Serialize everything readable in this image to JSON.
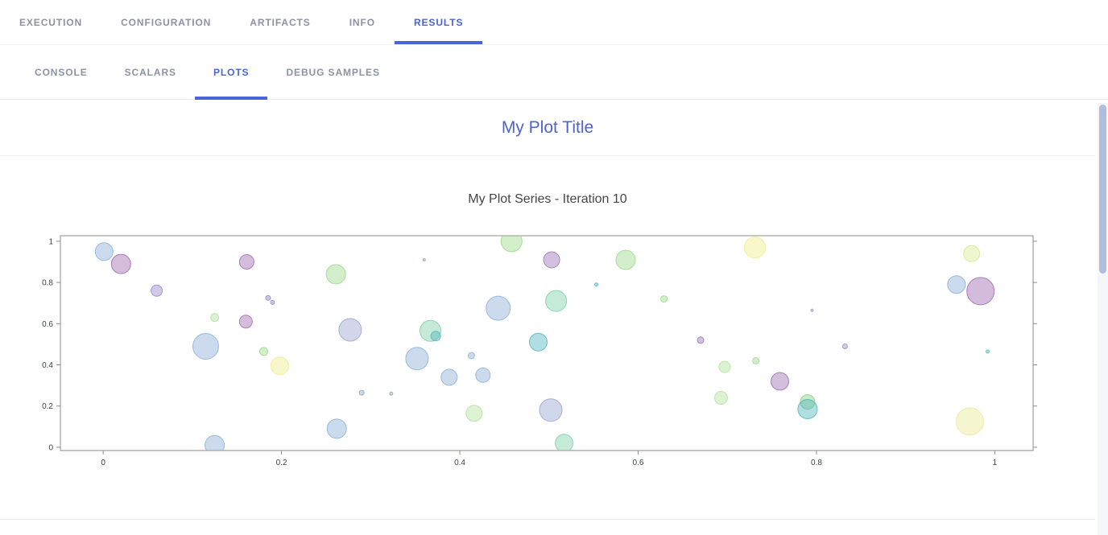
{
  "nav": {
    "tabs": [
      {
        "label": "EXECUTION",
        "active": false
      },
      {
        "label": "CONFIGURATION",
        "active": false
      },
      {
        "label": "ARTIFACTS",
        "active": false
      },
      {
        "label": "INFO",
        "active": false
      },
      {
        "label": "RESULTS",
        "active": true
      }
    ]
  },
  "subnav": {
    "tabs": [
      {
        "label": "CONSOLE",
        "active": false
      },
      {
        "label": "SCALARS",
        "active": false
      },
      {
        "label": "PLOTS",
        "active": true
      },
      {
        "label": "DEBUG SAMPLES",
        "active": false
      }
    ]
  },
  "plot_header": {
    "title": "My Plot Title"
  },
  "theme": {
    "accent": "#4a63d8",
    "plot_title_color": "#5064c4",
    "nav_inactive_color": "#8b92a3",
    "scrollbar_thumb_color": "#b1bddc",
    "axis_frame_color": "#8c8c8c",
    "tick_label_color": "#3b3f48"
  },
  "chart_data": {
    "type": "scatter",
    "title": "My Plot Series - Iteration 10",
    "xlabel": "",
    "ylabel": "",
    "xlim": [
      -0.048,
      1.043
    ],
    "ylim": [
      -0.016,
      1.027
    ],
    "x_ticks": [
      0,
      0.2,
      0.4,
      0.6,
      0.8,
      1
    ],
    "y_ticks": [
      0,
      0.2,
      0.4,
      0.6,
      0.8,
      1
    ],
    "grid": false,
    "legend": false,
    "marker_fill_opacity": 0.45,
    "marker_stroke_opacity": 0.85,
    "points": [
      {
        "x": 0.001,
        "y": 0.95,
        "r": 11,
        "color": "#8cb0d6"
      },
      {
        "x": 0.02,
        "y": 0.89,
        "r": 12,
        "color": "#9f6bb0"
      },
      {
        "x": 0.06,
        "y": 0.76,
        "r": 7,
        "color": "#9888cc"
      },
      {
        "x": 0.115,
        "y": 0.49,
        "r": 16,
        "color": "#8cb0d6"
      },
      {
        "x": 0.125,
        "y": 0.63,
        "r": 5,
        "color": "#b2e39e"
      },
      {
        "x": 0.125,
        "y": 0.01,
        "r": 12,
        "color": "#8cb0d6"
      },
      {
        "x": 0.161,
        "y": 0.9,
        "r": 9,
        "color": "#9f6bb0"
      },
      {
        "x": 0.16,
        "y": 0.61,
        "r": 8,
        "color": "#a06fb2"
      },
      {
        "x": 0.18,
        "y": 0.465,
        "r": 5,
        "color": "#9cd989"
      },
      {
        "x": 0.185,
        "y": 0.725,
        "r": 3,
        "color": "#8f86c4"
      },
      {
        "x": 0.19,
        "y": 0.703,
        "r": 2.5,
        "color": "#8f86c4"
      },
      {
        "x": 0.198,
        "y": 0.395,
        "r": 11,
        "color": "#f0ed8c"
      },
      {
        "x": 0.261,
        "y": 0.84,
        "r": 12,
        "color": "#9cd989"
      },
      {
        "x": 0.262,
        "y": 0.09,
        "r": 12,
        "color": "#8cb0d6"
      },
      {
        "x": 0.277,
        "y": 0.57,
        "r": 14,
        "color": "#9da3cf"
      },
      {
        "x": 0.29,
        "y": 0.265,
        "r": 3,
        "color": "#9aa2b2"
      },
      {
        "x": 0.323,
        "y": 0.26,
        "r": 2,
        "color": "#9aa2b2"
      },
      {
        "x": 0.352,
        "y": 0.43,
        "r": 14,
        "color": "#8cb0d6"
      },
      {
        "x": 0.36,
        "y": 0.91,
        "r": 1.5,
        "color": "#9aa2b2"
      },
      {
        "x": 0.367,
        "y": 0.565,
        "r": 13,
        "color": "#7fd0a8"
      },
      {
        "x": 0.373,
        "y": 0.54,
        "r": 6,
        "color": "#53b6c0"
      },
      {
        "x": 0.388,
        "y": 0.34,
        "r": 10,
        "color": "#8cb0d6"
      },
      {
        "x": 0.413,
        "y": 0.445,
        "r": 4,
        "color": "#8cb0d6"
      },
      {
        "x": 0.416,
        "y": 0.165,
        "r": 10,
        "color": "#b2e39e"
      },
      {
        "x": 0.426,
        "y": 0.35,
        "r": 9,
        "color": "#8cb0d6"
      },
      {
        "x": 0.443,
        "y": 0.675,
        "r": 15,
        "color": "#8cb0d6"
      },
      {
        "x": 0.458,
        "y": 1.0,
        "r": 13,
        "color": "#9cd989"
      },
      {
        "x": 0.488,
        "y": 0.51,
        "r": 11,
        "color": "#53b6c0"
      },
      {
        "x": 0.503,
        "y": 0.91,
        "r": 10,
        "color": "#9d74b6"
      },
      {
        "x": 0.502,
        "y": 0.18,
        "r": 14,
        "color": "#96a6d2"
      },
      {
        "x": 0.508,
        "y": 0.71,
        "r": 13,
        "color": "#7fd0a8"
      },
      {
        "x": 0.517,
        "y": 0.02,
        "r": 11,
        "color": "#7fd0a8"
      },
      {
        "x": 0.553,
        "y": 0.79,
        "r": 2,
        "color": "#53b6c0"
      },
      {
        "x": 0.586,
        "y": 0.91,
        "r": 12,
        "color": "#9cd989"
      },
      {
        "x": 0.629,
        "y": 0.72,
        "r": 4,
        "color": "#9cd989"
      },
      {
        "x": 0.67,
        "y": 0.52,
        "r": 4,
        "color": "#9a78b8"
      },
      {
        "x": 0.697,
        "y": 0.39,
        "r": 7,
        "color": "#b2e39e"
      },
      {
        "x": 0.693,
        "y": 0.24,
        "r": 8,
        "color": "#b2e39e"
      },
      {
        "x": 0.732,
        "y": 0.42,
        "r": 4,
        "color": "#9cd989"
      },
      {
        "x": 0.731,
        "y": 0.97,
        "r": 13,
        "color": "#f0ed8c"
      },
      {
        "x": 0.759,
        "y": 0.32,
        "r": 11,
        "color": "#9d6fb4"
      },
      {
        "x": 0.79,
        "y": 0.22,
        "r": 9,
        "color": "#8ace7e"
      },
      {
        "x": 0.79,
        "y": 0.185,
        "r": 12,
        "color": "#53b6c0"
      },
      {
        "x": 0.795,
        "y": 0.665,
        "r": 1.5,
        "color": "#9aa2b2"
      },
      {
        "x": 0.832,
        "y": 0.49,
        "r": 3,
        "color": "#9a90cc"
      },
      {
        "x": 0.957,
        "y": 0.79,
        "r": 11,
        "color": "#8cb0d6"
      },
      {
        "x": 0.974,
        "y": 0.94,
        "r": 10,
        "color": "#d7ea93"
      },
      {
        "x": 0.984,
        "y": 0.758,
        "r": 17,
        "color": "#9d6bb0"
      },
      {
        "x": 0.972,
        "y": 0.125,
        "r": 17,
        "color": "#e9ec95"
      },
      {
        "x": 0.992,
        "y": 0.465,
        "r": 2,
        "color": "#53b6c0"
      }
    ]
  }
}
